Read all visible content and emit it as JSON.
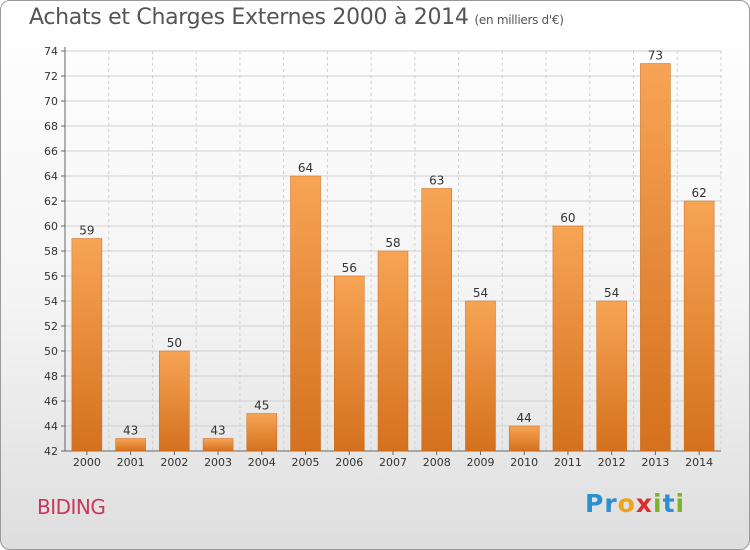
{
  "header": {
    "title": "Achats et Charges Externes 2000 à 2014",
    "subtitle": "(en milliers d'€)"
  },
  "footer": {
    "commune": "BIDING",
    "logo_letters": [
      {
        "ch": "P",
        "color": "#2b8fd1"
      },
      {
        "ch": "r",
        "color": "#2b8fd1"
      },
      {
        "ch": "o",
        "color": "#f0a21a"
      },
      {
        "ch": "x",
        "color": "#d7302c"
      },
      {
        "ch": "i",
        "color": "#7ab42c"
      },
      {
        "ch": "t",
        "color": "#2b8fd1"
      },
      {
        "ch": "i",
        "color": "#7ab42c"
      }
    ]
  },
  "chart_data": {
    "type": "bar",
    "categories": [
      "2000",
      "2001",
      "2002",
      "2003",
      "2004",
      "2005",
      "2006",
      "2007",
      "2008",
      "2009",
      "2010",
      "2011",
      "2012",
      "2013",
      "2014"
    ],
    "values": [
      59,
      43,
      50,
      43,
      45,
      64,
      56,
      58,
      63,
      54,
      44,
      60,
      54,
      73,
      62
    ],
    "ylim": [
      42,
      74
    ],
    "yticks": [
      42,
      44,
      46,
      48,
      50,
      52,
      54,
      56,
      58,
      60,
      62,
      64,
      66,
      68,
      70,
      72,
      74
    ],
    "grid": true,
    "bar_color_top": "#f7a455",
    "bar_color_bottom": "#d4711e"
  }
}
